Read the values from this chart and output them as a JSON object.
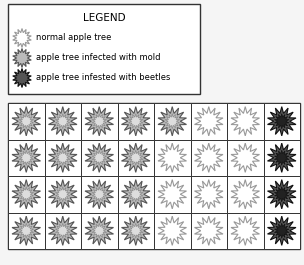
{
  "grid_rows": 4,
  "grid_cols": 8,
  "cell_types": [
    [
      "mold",
      "mold",
      "mold",
      "mold",
      "mold",
      "normal",
      "normal",
      "beetle"
    ],
    [
      "mold",
      "mold",
      "mold",
      "mold",
      "normal",
      "normal",
      "normal",
      "beetle"
    ],
    [
      "mold",
      "mold",
      "mold",
      "mold",
      "normal",
      "normal",
      "normal",
      "beetle"
    ],
    [
      "mold",
      "mold",
      "mold",
      "mold",
      "normal",
      "normal",
      "normal",
      "beetle"
    ]
  ],
  "type_colors": {
    "normal": {
      "fill": "#ffffff",
      "edge": "#999999"
    },
    "mold": {
      "fill": "#bbbbbb",
      "edge": "#555555"
    },
    "beetle": {
      "fill": "#555555",
      "edge": "#111111"
    }
  },
  "legend_title": "LEGEND",
  "legend_items": [
    {
      "label": "normal apple tree",
      "type": "normal"
    },
    {
      "label": "apple tree infected with mold",
      "type": "mold"
    },
    {
      "label": "apple tree infested with beetles",
      "type": "beetle"
    }
  ],
  "bg_color": "#f5f5f5",
  "star_spikes": 14,
  "star_outer_r": 0.38,
  "star_inner_r": 0.2
}
